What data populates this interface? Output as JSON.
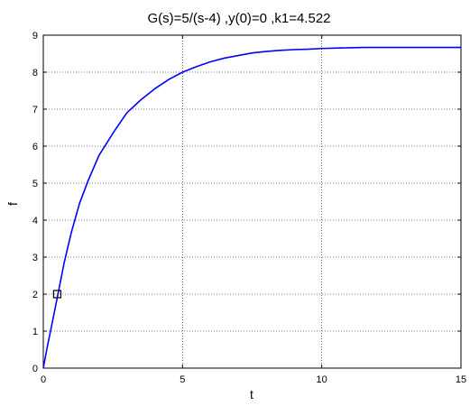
{
  "chart_data": {
    "type": "line",
    "title": "G(s)=5/(s-4) ,y(0)=0 ,k1=4.522",
    "xlabel": "t",
    "ylabel": "f",
    "xlim": [
      0,
      15
    ],
    "ylim": [
      0,
      9
    ],
    "xticks": [
      0,
      5,
      10,
      15
    ],
    "yticks": [
      0,
      1,
      2,
      3,
      4,
      5,
      6,
      7,
      8,
      9
    ],
    "grid": true,
    "series": [
      {
        "color": "#0000ff",
        "x": [
          0,
          0.15,
          0.3,
          0.5,
          0.75,
          1.0,
          1.3,
          1.6,
          2.0,
          2.5,
          3.0,
          3.5,
          4.0,
          4.5,
          5.0,
          5.5,
          6.0,
          6.5,
          7.0,
          7.5,
          8.0,
          8.5,
          9.0,
          9.5,
          10.0,
          10.5,
          11.0,
          11.5,
          12.0,
          13.0,
          14.0,
          15.0
        ],
        "y": [
          0,
          0.6,
          1.15,
          1.9,
          2.85,
          3.65,
          4.45,
          5.05,
          5.75,
          6.35,
          6.9,
          7.25,
          7.55,
          7.8,
          8.0,
          8.15,
          8.28,
          8.38,
          8.45,
          8.52,
          8.56,
          8.59,
          8.61,
          8.62,
          8.64,
          8.65,
          8.66,
          8.67,
          8.67,
          8.67,
          8.67,
          8.67
        ]
      }
    ],
    "marker": {
      "shape": "square",
      "x": 0.5,
      "y": 2.0
    }
  }
}
